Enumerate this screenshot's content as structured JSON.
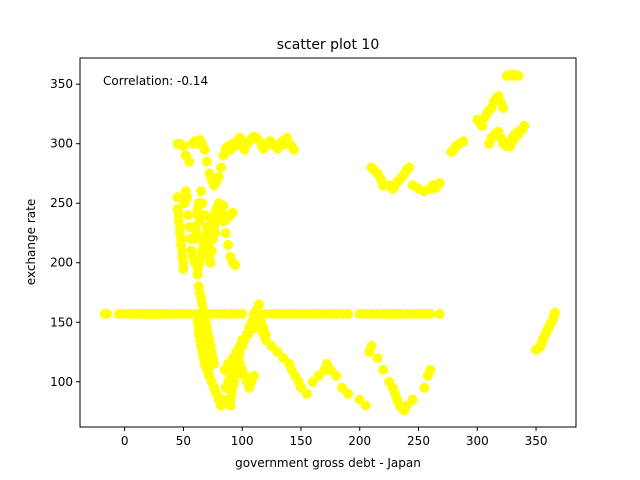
{
  "chart_data": {
    "type": "scatter",
    "title": "scatter plot 10",
    "xlabel": "government gross debt - Japan",
    "ylabel": "exchange rate",
    "annotation": "Correlation: -0.14",
    "xlim": [
      -38,
      384
    ],
    "ylim": [
      62,
      372
    ],
    "xticks": [
      0,
      50,
      100,
      150,
      200,
      250,
      300,
      350
    ],
    "yticks": [
      100,
      150,
      200,
      250,
      300,
      350
    ],
    "grid": false,
    "marker_color": "#ffff00",
    "series": [
      {
        "x": [
          -17,
          -15,
          -5,
          0,
          5,
          10,
          14,
          16,
          18,
          20,
          22,
          24,
          26,
          28,
          30,
          32,
          34,
          36,
          40,
          45,
          50,
          55,
          60,
          65,
          70,
          75,
          80,
          85,
          90,
          95,
          100,
          110,
          115,
          120,
          125,
          130,
          135,
          140,
          145,
          150,
          155,
          160,
          165,
          170,
          175,
          180,
          185,
          190,
          200,
          205,
          210,
          215,
          220,
          222,
          225,
          228,
          230,
          232,
          235,
          240,
          245,
          250,
          255,
          260,
          268,
          45,
          47,
          50,
          52,
          55,
          58,
          60,
          62,
          64,
          66,
          68,
          70,
          72,
          74,
          76,
          78,
          80,
          82,
          84,
          86,
          88,
          90,
          92,
          94,
          96,
          98,
          100,
          102,
          104,
          106,
          108,
          110,
          112,
          114,
          116,
          118,
          120,
          122,
          124,
          126,
          128,
          130,
          132,
          134,
          136,
          138,
          140,
          142,
          144,
          45,
          45,
          46,
          46,
          47,
          47,
          48,
          48,
          49,
          49,
          50,
          50,
          51,
          52,
          53,
          54,
          55,
          56,
          57,
          58,
          60,
          62,
          64,
          65,
          66,
          67,
          68,
          70,
          72,
          74,
          76,
          78,
          80,
          82,
          84,
          86,
          88,
          90,
          92,
          94,
          60,
          60,
          61,
          62,
          62,
          63,
          64,
          65,
          66,
          68,
          70,
          70,
          71,
          72,
          72,
          73,
          74,
          75,
          76,
          77,
          78,
          80,
          82,
          84,
          86,
          88,
          90,
          92,
          62,
          63,
          64,
          65,
          66,
          67,
          68,
          69,
          70,
          71,
          72,
          73,
          74,
          75,
          76,
          63,
          64,
          65,
          66,
          67,
          68,
          69,
          70,
          71,
          72,
          74,
          76,
          78,
          80,
          82,
          84,
          86,
          88,
          90,
          92,
          94,
          96,
          98,
          100,
          102,
          104,
          106,
          108,
          110,
          62,
          62,
          63,
          63,
          64,
          65,
          66,
          67,
          68,
          70,
          72,
          74,
          76,
          78,
          80,
          85,
          88,
          92,
          95,
          98,
          100,
          105,
          110,
          112,
          115,
          118,
          120,
          125,
          130,
          135,
          140,
          142,
          145,
          148,
          150,
          155,
          160,
          165,
          170,
          172,
          175,
          180,
          185,
          190,
          200,
          205,
          208,
          210,
          215,
          220,
          225,
          228,
          230,
          232,
          234,
          236,
          238,
          240,
          245,
          255,
          258,
          260,
          90,
          90,
          91,
          92,
          93,
          94,
          95,
          96,
          97,
          98,
          100,
          102,
          104,
          106,
          108,
          110,
          112,
          114,
          116,
          118,
          120,
          210,
          212,
          215,
          218,
          220,
          225,
          228,
          230,
          232,
          234,
          236,
          238,
          240,
          242,
          245,
          250,
          255,
          260,
          262,
          265,
          268,
          278,
          280,
          282,
          285,
          288,
          300,
          302,
          304,
          306,
          308,
          310,
          312,
          314,
          316,
          318,
          320,
          322,
          325,
          328,
          330,
          332,
          335,
          338,
          340,
          310,
          312,
          315,
          318,
          320,
          322,
          325,
          328,
          330,
          332,
          335,
          338,
          325,
          328,
          330,
          332,
          335,
          350,
          352,
          354,
          355,
          356,
          357,
          358,
          359,
          360,
          361,
          362,
          363,
          364,
          365,
          366
        ],
        "y": [
          157,
          157,
          157,
          157,
          157,
          157,
          157,
          157,
          157,
          157,
          157,
          157,
          157,
          157,
          157,
          157,
          157,
          157,
          157,
          157,
          157,
          157,
          157,
          157,
          157,
          157,
          157,
          157,
          157,
          157,
          157,
          157,
          157,
          157,
          157,
          157,
          157,
          157,
          157,
          157,
          157,
          157,
          157,
          157,
          157,
          157,
          157,
          157,
          157,
          157,
          157,
          157,
          157,
          157,
          157,
          157,
          157,
          157,
          157,
          157,
          157,
          157,
          157,
          157,
          157,
          300,
          300,
          298,
          290,
          285,
          300,
          302,
          300,
          303,
          300,
          295,
          285,
          275,
          270,
          265,
          268,
          272,
          280,
          290,
          296,
          298,
          295,
          300,
          298,
          302,
          305,
          300,
          295,
          300,
          302,
          304,
          306,
          305,
          303,
          300,
          296,
          298,
          300,
          302,
          300,
          298,
          296,
          298,
          302,
          300,
          305,
          300,
          298,
          295,
          255,
          245,
          240,
          235,
          230,
          225,
          220,
          215,
          210,
          205,
          200,
          195,
          250,
          260,
          255,
          240,
          230,
          220,
          210,
          205,
          200,
          195,
          200,
          205,
          210,
          215,
          220,
          225,
          230,
          235,
          240,
          245,
          250,
          245,
          235,
          225,
          215,
          205,
          200,
          198,
          230,
          220,
          225,
          245,
          240,
          250,
          235,
          260,
          250,
          240,
          230,
          220,
          215,
          210,
          205,
          200,
          210,
          220,
          230,
          225,
          235,
          240,
          245,
          248,
          240,
          238,
          240,
          242,
          190,
          180,
          175,
          170,
          165,
          160,
          155,
          150,
          145,
          140,
          135,
          130,
          125,
          120,
          115,
          150,
          145,
          140,
          135,
          130,
          125,
          120,
          115,
          110,
          105,
          100,
          95,
          90,
          85,
          80,
          85,
          95,
          100,
          105,
          110,
          115,
          120,
          115,
          110,
          105,
          100,
          95,
          100,
          105,
          155,
          150,
          145,
          140,
          135,
          130,
          125,
          120,
          115,
          110,
          105,
          100,
          95,
          90,
          85,
          110,
          115,
          120,
          125,
          130,
          135,
          140,
          145,
          150,
          145,
          140,
          135,
          130,
          125,
          120,
          115,
          110,
          105,
          100,
          95,
          90,
          100,
          105,
          110,
          115,
          110,
          105,
          95,
          90,
          85,
          80,
          125,
          130,
          120,
          110,
          100,
          95,
          90,
          85,
          80,
          78,
          76,
          80,
          85,
          95,
          105,
          110,
          80,
          85,
          90,
          95,
          100,
          105,
          110,
          115,
          120,
          125,
          130,
          135,
          140,
          145,
          150,
          155,
          160,
          165,
          150,
          145,
          140,
          280,
          278,
          275,
          270,
          265,
          265,
          262,
          265,
          268,
          270,
          272,
          275,
          278,
          280,
          265,
          262,
          260,
          262,
          265,
          263,
          267,
          293,
          295,
          298,
          300,
          302,
          320,
          318,
          315,
          322,
          325,
          328,
          330,
          335,
          338,
          340,
          335,
          330,
          300,
          298,
          302,
          305,
          308,
          312,
          315,
          300,
          305,
          308,
          310,
          305,
          300,
          298,
          302,
          305,
          308,
          310,
          312,
          357,
          358,
          357,
          358,
          357,
          127,
          128,
          130,
          133,
          136,
          138,
          140,
          142,
          144,
          146,
          148,
          150,
          152,
          155,
          158
        ]
      }
    ]
  }
}
